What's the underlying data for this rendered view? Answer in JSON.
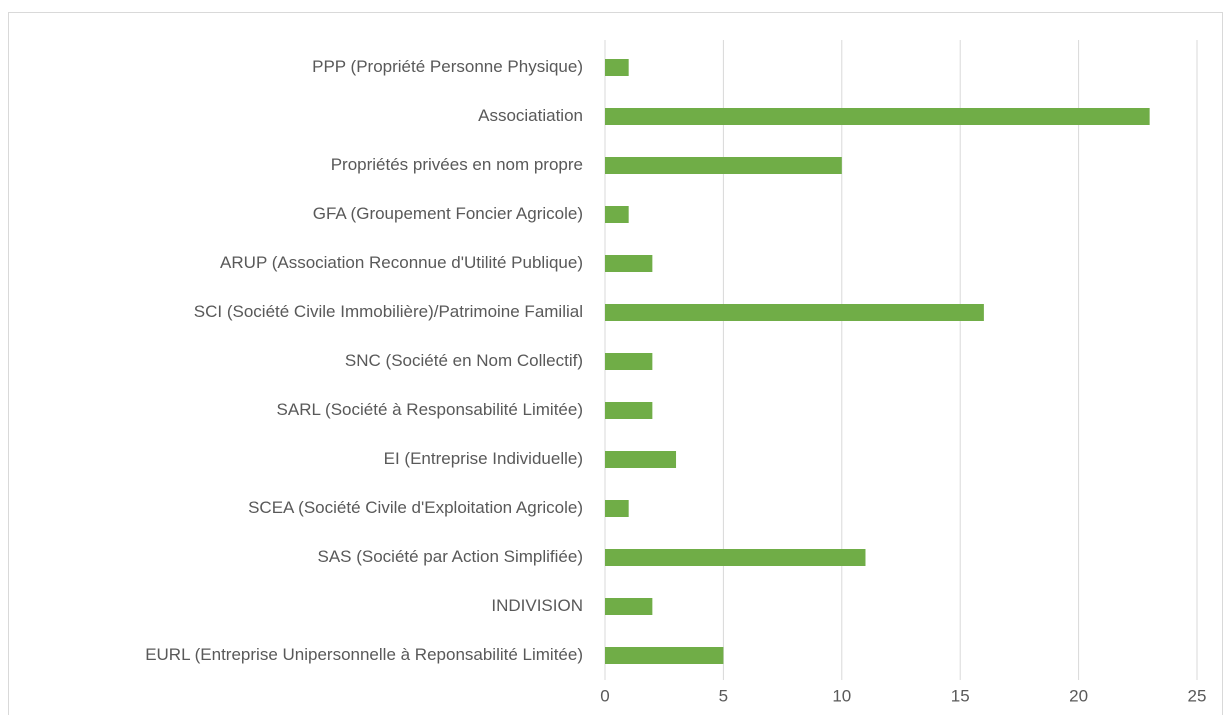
{
  "chart_data": {
    "type": "barh",
    "categories": [
      "PPP (Propriété Personne Physique)",
      "Associatiation",
      "Propriétés privées en nom propre",
      "GFA (Groupement Foncier Agricole)",
      "ARUP (Association Reconnue d'Utilité Publique)",
      "SCI (Société Civile Immobilière)/Patrimoine Familial",
      "SNC (Société en Nom Collectif)",
      "SARL (Société à Responsabilité Limitée)",
      "EI (Entreprise Individuelle)",
      "SCEA (Société Civile d'Exploitation Agricole)",
      "SAS (Société par Action Simplifiée)",
      "INDIVISION",
      "EURL (Entreprise Unipersonnelle à Reponsabilité Limitée)"
    ],
    "values": [
      1,
      23,
      10,
      1,
      2,
      16,
      2,
      2,
      3,
      1,
      11,
      2,
      5
    ],
    "color": "#70ad47",
    "xlim": [
      0,
      25
    ],
    "xticks": [
      0,
      5,
      10,
      15,
      20,
      25
    ],
    "grid": true
  }
}
